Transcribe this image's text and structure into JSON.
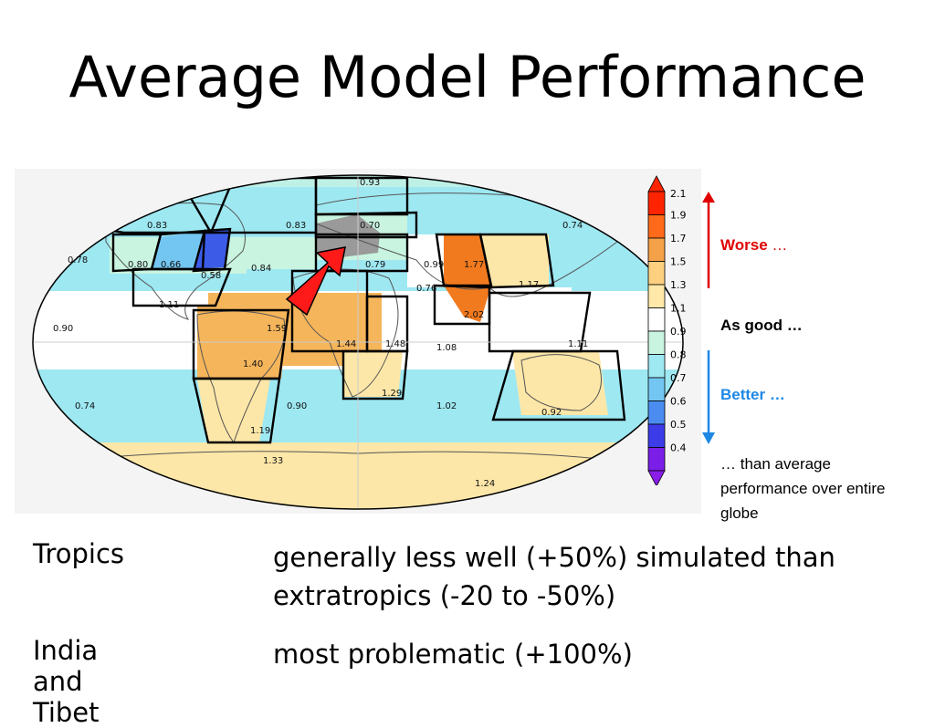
{
  "title": "Average Model Performance",
  "colorbar": {
    "ticks": [
      "2.1",
      "1.9",
      "1.7",
      "1.5",
      "1.3",
      "1.1",
      "0.9",
      "0.8",
      "0.7",
      "0.6",
      "0.5",
      "0.4"
    ],
    "colors": [
      "#ff2400",
      "#ff6a1a",
      "#f5a14a",
      "#fdd080",
      "#ffe8a8",
      "#ffffff",
      "#c8f4e0",
      "#9ee8f2",
      "#74c6f2",
      "#4b8cf0",
      "#3c3ce8",
      "#7a1ee8"
    ]
  },
  "legend": {
    "worse": "Worse",
    "worse_dots": "…",
    "as_good": "As good …",
    "better": "Better …",
    "note": "… than average performance over entire globe"
  },
  "regions": {
    "greenland": "0.83",
    "arctic": "0.93",
    "n_america_north": "0.83",
    "europe": "0.70",
    "n_asia": "0.74",
    "w_na": "0.80",
    "c_na": "0.66",
    "e_na": "0.58",
    "n_atlantic": "0.84",
    "n_pacific": "0.78",
    "mediterranean": "0.79",
    "c_asia": "0.99",
    "tibet": "1.77",
    "sahara": "0.76",
    "india": "2.02",
    "e_asia": "1.17",
    "c_america": "1.11",
    "amazon": "1.59",
    "w_africa": "1.44",
    "e_africa": "1.48",
    "indian_ocean": "1.08",
    "se_asia": "1.11",
    "e_pacific": "0.90",
    "s_south_america": "1.40",
    "s_africa": "1.29",
    "australia": "0.92",
    "s_pacific": "0.74",
    "s_atlantic": "0.90",
    "s_indian": "1.02",
    "patagonia": "1.19",
    "antarctic_w": "1.33",
    "antarctic_e": "1.24"
  },
  "bottom": [
    {
      "label": "Tropics",
      "text": "generally less well (+50%) simulated than extratropics (-20 to -50%)"
    },
    {
      "label": "India and Tibet",
      "text": "most problematic (+100%)"
    }
  ]
}
